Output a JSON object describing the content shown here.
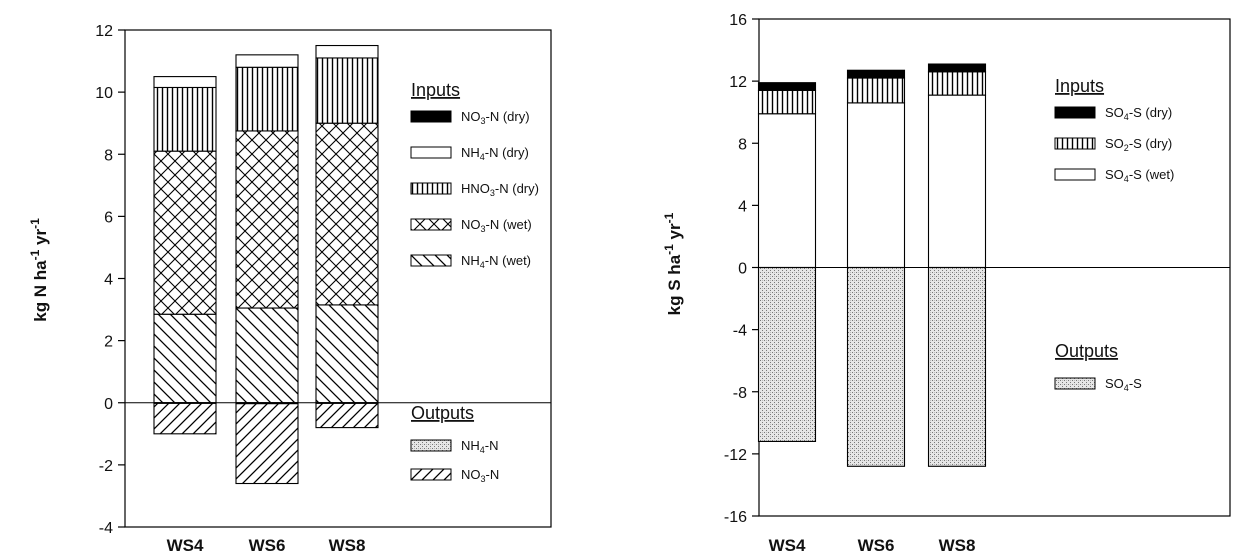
{
  "chart_data": [
    {
      "type": "bar",
      "stacked": true,
      "categories": [
        "WS4",
        "WS6",
        "WS8"
      ],
      "ylabel": {
        "main": "kg N ha",
        "exp1": "-1",
        "mid": " yr",
        "exp2": "-1"
      },
      "ylim": [
        -4,
        12
      ],
      "yticks": [
        "-4",
        "-2",
        "0",
        "2",
        "4",
        "6",
        "8",
        "10",
        "12"
      ],
      "grid": false,
      "legend": {
        "inputs_title": "Inputs",
        "outputs_title": "Outputs",
        "inputs": [
          {
            "key": "no3_dry",
            "base": "NO",
            "sub": "3",
            "rest": "-N (dry)",
            "pattern": "solid-black"
          },
          {
            "key": "nh4_dry",
            "base": "NH",
            "sub": "4",
            "rest": "-N (dry)",
            "pattern": "white"
          },
          {
            "key": "hno3_dry",
            "base": "HNO",
            "sub": "3",
            "rest": "-N (dry)",
            "pattern": "vertical-lines"
          },
          {
            "key": "no3_wet",
            "base": "NO",
            "sub": "3",
            "rest": "-N (wet)",
            "pattern": "crosshatch"
          },
          {
            "key": "nh4_wet",
            "base": "NH",
            "sub": "4",
            "rest": "-N (wet)",
            "pattern": "back-diagonal"
          }
        ],
        "outputs": [
          {
            "key": "nh4_out",
            "base": "NH",
            "sub": "4",
            "rest": "-N",
            "pattern": "stipple"
          },
          {
            "key": "no3_out",
            "base": "NO",
            "sub": "3",
            "rest": "-N",
            "pattern": "forward-diagonal"
          }
        ]
      },
      "series_inputs": [
        {
          "key": "nh4_wet",
          "values": [
            2.85,
            3.05,
            3.15
          ]
        },
        {
          "key": "no3_wet",
          "values": [
            5.25,
            5.7,
            5.85
          ]
        },
        {
          "key": "hno3_dry",
          "values": [
            2.05,
            2.05,
            2.1
          ]
        },
        {
          "key": "nh4_dry",
          "values": [
            0.35,
            0.4,
            0.4
          ]
        },
        {
          "key": "no3_dry",
          "values": [
            0.0,
            0.0,
            0.0
          ]
        }
      ],
      "series_outputs": [
        {
          "key": "nh4_out",
          "values": [
            -0.02,
            -0.03,
            -0.02
          ]
        },
        {
          "key": "no3_out",
          "values": [
            -0.98,
            -2.57,
            -0.78
          ]
        }
      ]
    },
    {
      "type": "bar",
      "stacked": true,
      "categories": [
        "WS4",
        "WS6",
        "WS8"
      ],
      "ylabel": {
        "main": "kg S ha",
        "exp1": "-1",
        "mid": " yr",
        "exp2": "-1"
      },
      "ylim": [
        -16,
        16
      ],
      "yticks": [
        "-16",
        "-12",
        "-8",
        "-4",
        "0",
        "4",
        "8",
        "12",
        "16"
      ],
      "grid": false,
      "legend": {
        "inputs_title": "Inputs",
        "outputs_title": "Outputs",
        "inputs": [
          {
            "key": "so4_dry",
            "base": "SO",
            "sub": "4",
            "rest": "-S (dry)",
            "pattern": "solid-black"
          },
          {
            "key": "so2_dry",
            "base": "SO",
            "sub": "2",
            "rest": "-S (dry)",
            "pattern": "vertical-lines"
          },
          {
            "key": "so4_wet",
            "base": "SO",
            "sub": "4",
            "rest": "-S (wet)",
            "pattern": "white"
          }
        ],
        "outputs": [
          {
            "key": "so4_out",
            "base": "SO",
            "sub": "4",
            "rest": "-S",
            "pattern": "stipple"
          }
        ]
      },
      "series_inputs": [
        {
          "key": "so4_wet",
          "values": [
            9.9,
            10.6,
            11.1
          ]
        },
        {
          "key": "so2_dry",
          "values": [
            1.5,
            1.6,
            1.5
          ]
        },
        {
          "key": "so4_dry",
          "values": [
            0.5,
            0.5,
            0.5
          ]
        }
      ],
      "series_outputs": [
        {
          "key": "so4_out",
          "values": [
            -11.2,
            -12.8,
            -12.8
          ]
        }
      ]
    }
  ]
}
